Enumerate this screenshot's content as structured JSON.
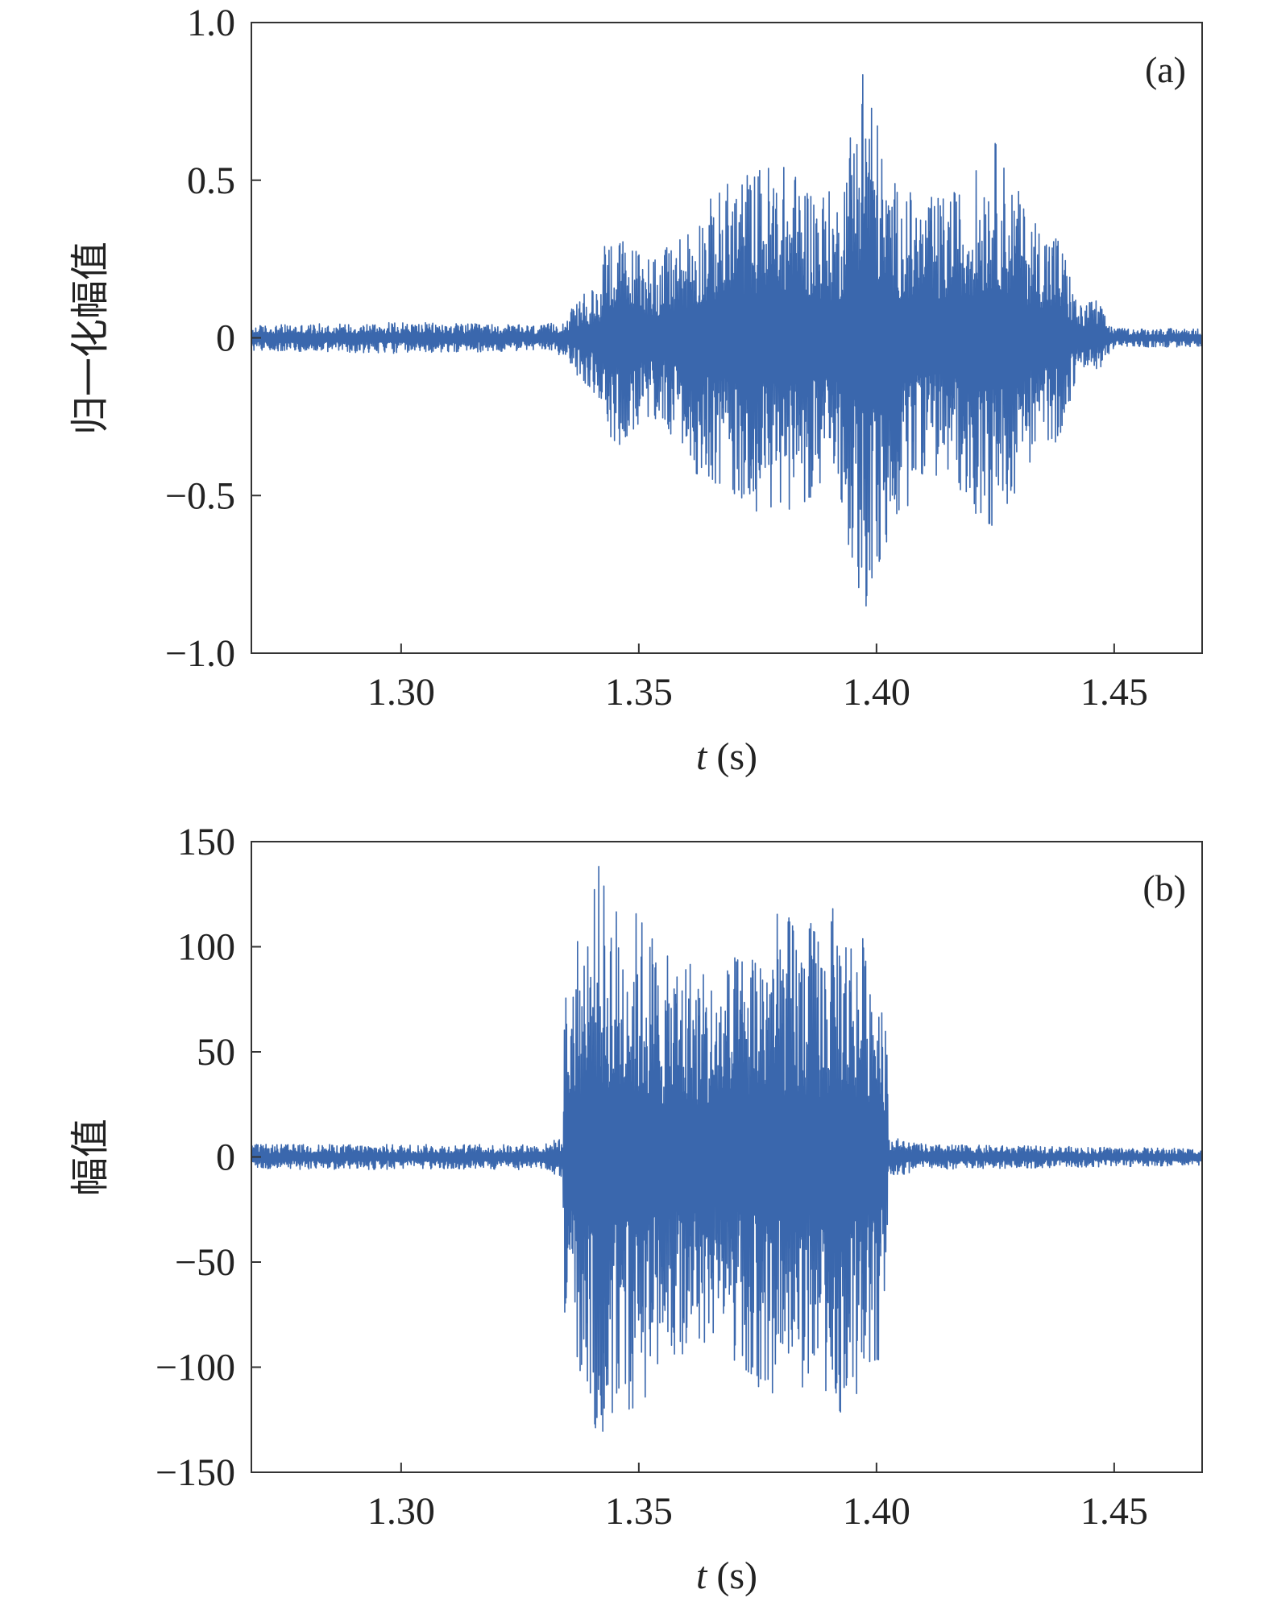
{
  "chart_data": [
    {
      "type": "line",
      "panel_label": "(a)",
      "xlabel_var": "t",
      "xlabel_unit": "(s)",
      "ylabel": "归一化幅值",
      "xlim": [
        1.2685,
        1.4685
      ],
      "ylim": [
        -1.0,
        1.0
      ],
      "xticks": [
        1.3,
        1.35,
        1.4,
        1.45
      ],
      "xtick_labels": [
        "1.30",
        "1.35",
        "1.40",
        "1.45"
      ],
      "yticks": [
        1.0,
        0.5,
        0,
        -0.5,
        -1.0
      ],
      "ytick_labels": [
        "1.0",
        "0.5",
        "0",
        "−0.5",
        "−1.0"
      ],
      "grid": false,
      "series": [
        {
          "color": "#3a67ad",
          "envelope": {
            "t": [
              1.2685,
              1.3,
              1.33,
              1.3345,
              1.338,
              1.3415,
              1.343,
              1.348,
              1.355,
              1.362,
              1.37,
              1.378,
              1.385,
              1.392,
              1.3975,
              1.402,
              1.41,
              1.418,
              1.425,
              1.432,
              1.4385,
              1.4425,
              1.446,
              1.45,
              1.4685
            ],
            "upper": [
              0.04,
              0.05,
              0.04,
              0.06,
              0.14,
              0.16,
              0.36,
              0.3,
              0.27,
              0.4,
              0.52,
              0.57,
              0.52,
              0.45,
              0.98,
              0.52,
              0.44,
              0.48,
              0.63,
              0.4,
              0.34,
              0.1,
              0.13,
              0.03,
              0.03
            ],
            "lower": [
              -0.04,
              -0.05,
              -0.04,
              -0.06,
              -0.14,
              -0.19,
              -0.37,
              -0.32,
              -0.27,
              -0.43,
              -0.52,
              -0.57,
              -0.52,
              -0.48,
              -0.95,
              -0.7,
              -0.42,
              -0.5,
              -0.64,
              -0.4,
              -0.33,
              -0.1,
              -0.12,
              -0.03,
              -0.03
            ]
          }
        }
      ]
    },
    {
      "type": "line",
      "panel_label": "(b)",
      "xlabel_var": "t",
      "xlabel_unit": "(s)",
      "ylabel": "幅值",
      "xlim": [
        1.2685,
        1.4685
      ],
      "ylim": [
        -150,
        150
      ],
      "xticks": [
        1.3,
        1.35,
        1.4,
        1.45
      ],
      "xtick_labels": [
        "1.30",
        "1.35",
        "1.40",
        "1.45"
      ],
      "yticks": [
        150,
        100,
        50,
        0,
        -50,
        -100,
        -150
      ],
      "ytick_labels": [
        "150",
        "100",
        "50",
        "0",
        "−50",
        "−100",
        "−150"
      ],
      "grid": false,
      "series": [
        {
          "color": "#3a67ad",
          "envelope": {
            "t": [
              1.2685,
              1.3,
              1.33,
              1.334,
              1.3345,
              1.338,
              1.3415,
              1.346,
              1.3515,
              1.3555,
              1.36,
              1.366,
              1.372,
              1.378,
              1.383,
              1.388,
              1.392,
              1.396,
              1.401,
              1.402,
              1.4025,
              1.41,
              1.44,
              1.4685
            ],
            "upper": [
              6,
              6,
              6,
              10,
              88,
              110,
              140,
              120,
              118,
              95,
              100,
              88,
              100,
              118,
              115,
              112,
              122,
              110,
              95,
              80,
              10,
              6,
              5,
              4
            ],
            "lower": [
              -6,
              -6,
              -6,
              -10,
              -90,
              -112,
              -138,
              -118,
              -128,
              -95,
              -98,
              -90,
              -100,
              -120,
              -112,
              -108,
              -125,
              -112,
              -96,
              -82,
              -10,
              -6,
              -5,
              -4
            ]
          }
        }
      ]
    }
  ]
}
